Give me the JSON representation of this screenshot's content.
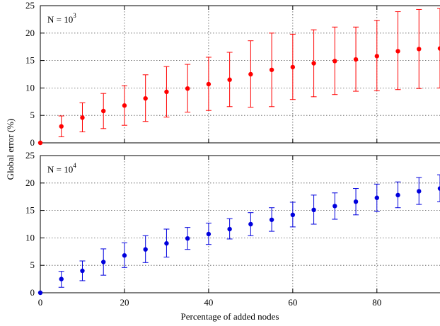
{
  "chart_data": {
    "type": "scatter",
    "xlabel": "Percentage of added nodes",
    "ylabel": "Global error (%)",
    "xlim": [
      0,
      95
    ],
    "x_ticks": [
      0,
      20,
      40,
      60,
      80
    ],
    "grid": true,
    "panels": [
      {
        "label_base": "N = 10",
        "label_exp": "3",
        "color": "#ff0000",
        "ylim": [
          0,
          25
        ],
        "y_ticks": [
          0,
          5,
          10,
          15,
          20,
          25
        ],
        "points": [
          {
            "x": 0,
            "y": 0,
            "low": 0,
            "high": 0
          },
          {
            "x": 5,
            "y": 3.0,
            "low": 1.1,
            "high": 4.9
          },
          {
            "x": 10,
            "y": 4.6,
            "low": 2.0,
            "high": 7.3
          },
          {
            "x": 15,
            "y": 5.8,
            "low": 2.6,
            "high": 9.0
          },
          {
            "x": 20,
            "y": 6.8,
            "low": 3.2,
            "high": 10.4
          },
          {
            "x": 25,
            "y": 8.1,
            "low": 3.9,
            "high": 12.4
          },
          {
            "x": 30,
            "y": 9.3,
            "low": 4.7,
            "high": 13.9
          },
          {
            "x": 35,
            "y": 9.9,
            "low": 5.6,
            "high": 14.3
          },
          {
            "x": 40,
            "y": 10.7,
            "low": 5.9,
            "high": 15.6
          },
          {
            "x": 45,
            "y": 11.5,
            "low": 6.6,
            "high": 16.5
          },
          {
            "x": 50,
            "y": 12.5,
            "low": 6.5,
            "high": 18.6
          },
          {
            "x": 55,
            "y": 13.3,
            "low": 6.6,
            "high": 20.0
          },
          {
            "x": 60,
            "y": 13.8,
            "low": 7.9,
            "high": 19.8
          },
          {
            "x": 65,
            "y": 14.5,
            "low": 8.4,
            "high": 20.6
          },
          {
            "x": 70,
            "y": 14.9,
            "low": 8.8,
            "high": 21.1
          },
          {
            "x": 75,
            "y": 15.2,
            "low": 9.4,
            "high": 21.1
          },
          {
            "x": 80,
            "y": 15.8,
            "low": 9.5,
            "high": 22.3
          },
          {
            "x": 85,
            "y": 16.7,
            "low": 9.7,
            "high": 23.9
          },
          {
            "x": 90,
            "y": 17.1,
            "low": 9.9,
            "high": 24.3
          },
          {
            "x": 95,
            "y": 17.2,
            "low": 10.0,
            "high": 24.5
          }
        ]
      },
      {
        "label_base": "N = 10",
        "label_exp": "4",
        "color": "#0000dd",
        "ylim": [
          0,
          25
        ],
        "y_ticks": [
          0,
          5,
          10,
          15,
          20,
          25
        ],
        "points": [
          {
            "x": 0,
            "y": 0,
            "low": 0,
            "high": 0
          },
          {
            "x": 5,
            "y": 2.5,
            "low": 1.0,
            "high": 3.9
          },
          {
            "x": 10,
            "y": 4.0,
            "low": 2.2,
            "high": 5.8
          },
          {
            "x": 15,
            "y": 5.6,
            "low": 3.2,
            "high": 8.0
          },
          {
            "x": 20,
            "y": 6.8,
            "low": 4.6,
            "high": 9.1
          },
          {
            "x": 25,
            "y": 7.9,
            "low": 5.5,
            "high": 10.4
          },
          {
            "x": 30,
            "y": 9.0,
            "low": 6.5,
            "high": 11.6
          },
          {
            "x": 35,
            "y": 9.9,
            "low": 7.9,
            "high": 11.9
          },
          {
            "x": 40,
            "y": 10.7,
            "low": 8.8,
            "high": 12.7
          },
          {
            "x": 45,
            "y": 11.6,
            "low": 9.8,
            "high": 13.5
          },
          {
            "x": 50,
            "y": 12.5,
            "low": 10.4,
            "high": 14.6
          },
          {
            "x": 55,
            "y": 13.3,
            "low": 11.2,
            "high": 15.5
          },
          {
            "x": 60,
            "y": 14.2,
            "low": 12.0,
            "high": 16.5
          },
          {
            "x": 65,
            "y": 15.1,
            "low": 12.5,
            "high": 17.8
          },
          {
            "x": 70,
            "y": 15.8,
            "low": 13.4,
            "high": 18.2
          },
          {
            "x": 75,
            "y": 16.6,
            "low": 14.2,
            "high": 19.0
          },
          {
            "x": 80,
            "y": 17.3,
            "low": 14.8,
            "high": 19.8
          },
          {
            "x": 85,
            "y": 17.8,
            "low": 15.5,
            "high": 20.2
          },
          {
            "x": 90,
            "y": 18.5,
            "low": 16.1,
            "high": 21.0
          },
          {
            "x": 95,
            "y": 19.0,
            "low": 16.6,
            "high": 21.5
          }
        ]
      }
    ]
  }
}
